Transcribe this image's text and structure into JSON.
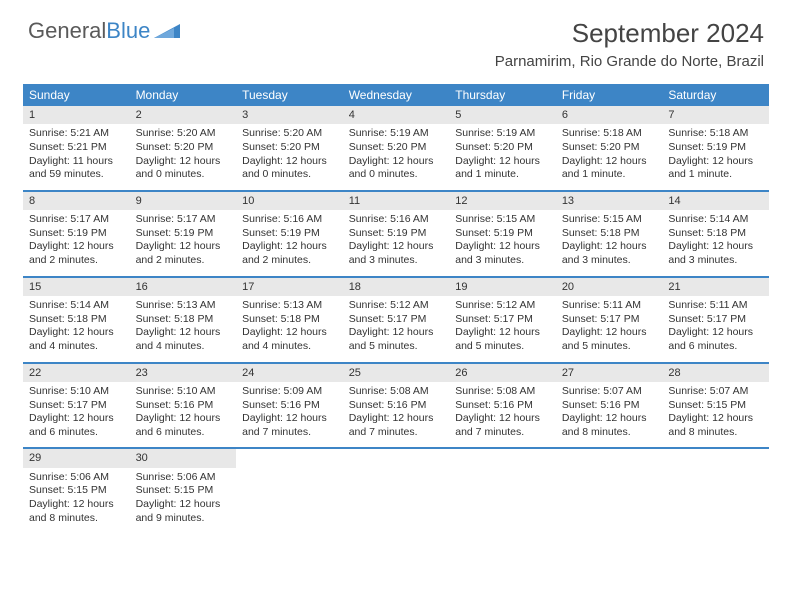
{
  "brand": {
    "part1": "General",
    "part2": "Blue"
  },
  "title": "September 2024",
  "location": "Parnamirim, Rio Grande do Norte, Brazil",
  "colors": {
    "header_bg": "#3d85c6",
    "header_text": "#ffffff",
    "daynum_bg": "#e8e8e8",
    "border": "#3d85c6",
    "page_bg": "#ffffff"
  },
  "typography": {
    "title_fontsize": 26,
    "location_fontsize": 15,
    "dayheader_fontsize": 12,
    "cell_fontsize": 10.5
  },
  "day_headers": [
    "Sunday",
    "Monday",
    "Tuesday",
    "Wednesday",
    "Thursday",
    "Friday",
    "Saturday"
  ],
  "days": [
    {
      "n": "1",
      "sunrise": "Sunrise: 5:21 AM",
      "sunset": "Sunset: 5:21 PM",
      "daylight": "Daylight: 11 hours and 59 minutes."
    },
    {
      "n": "2",
      "sunrise": "Sunrise: 5:20 AM",
      "sunset": "Sunset: 5:20 PM",
      "daylight": "Daylight: 12 hours and 0 minutes."
    },
    {
      "n": "3",
      "sunrise": "Sunrise: 5:20 AM",
      "sunset": "Sunset: 5:20 PM",
      "daylight": "Daylight: 12 hours and 0 minutes."
    },
    {
      "n": "4",
      "sunrise": "Sunrise: 5:19 AM",
      "sunset": "Sunset: 5:20 PM",
      "daylight": "Daylight: 12 hours and 0 minutes."
    },
    {
      "n": "5",
      "sunrise": "Sunrise: 5:19 AM",
      "sunset": "Sunset: 5:20 PM",
      "daylight": "Daylight: 12 hours and 1 minute."
    },
    {
      "n": "6",
      "sunrise": "Sunrise: 5:18 AM",
      "sunset": "Sunset: 5:20 PM",
      "daylight": "Daylight: 12 hours and 1 minute."
    },
    {
      "n": "7",
      "sunrise": "Sunrise: 5:18 AM",
      "sunset": "Sunset: 5:19 PM",
      "daylight": "Daylight: 12 hours and 1 minute."
    },
    {
      "n": "8",
      "sunrise": "Sunrise: 5:17 AM",
      "sunset": "Sunset: 5:19 PM",
      "daylight": "Daylight: 12 hours and 2 minutes."
    },
    {
      "n": "9",
      "sunrise": "Sunrise: 5:17 AM",
      "sunset": "Sunset: 5:19 PM",
      "daylight": "Daylight: 12 hours and 2 minutes."
    },
    {
      "n": "10",
      "sunrise": "Sunrise: 5:16 AM",
      "sunset": "Sunset: 5:19 PM",
      "daylight": "Daylight: 12 hours and 2 minutes."
    },
    {
      "n": "11",
      "sunrise": "Sunrise: 5:16 AM",
      "sunset": "Sunset: 5:19 PM",
      "daylight": "Daylight: 12 hours and 3 minutes."
    },
    {
      "n": "12",
      "sunrise": "Sunrise: 5:15 AM",
      "sunset": "Sunset: 5:19 PM",
      "daylight": "Daylight: 12 hours and 3 minutes."
    },
    {
      "n": "13",
      "sunrise": "Sunrise: 5:15 AM",
      "sunset": "Sunset: 5:18 PM",
      "daylight": "Daylight: 12 hours and 3 minutes."
    },
    {
      "n": "14",
      "sunrise": "Sunrise: 5:14 AM",
      "sunset": "Sunset: 5:18 PM",
      "daylight": "Daylight: 12 hours and 3 minutes."
    },
    {
      "n": "15",
      "sunrise": "Sunrise: 5:14 AM",
      "sunset": "Sunset: 5:18 PM",
      "daylight": "Daylight: 12 hours and 4 minutes."
    },
    {
      "n": "16",
      "sunrise": "Sunrise: 5:13 AM",
      "sunset": "Sunset: 5:18 PM",
      "daylight": "Daylight: 12 hours and 4 minutes."
    },
    {
      "n": "17",
      "sunrise": "Sunrise: 5:13 AM",
      "sunset": "Sunset: 5:18 PM",
      "daylight": "Daylight: 12 hours and 4 minutes."
    },
    {
      "n": "18",
      "sunrise": "Sunrise: 5:12 AM",
      "sunset": "Sunset: 5:17 PM",
      "daylight": "Daylight: 12 hours and 5 minutes."
    },
    {
      "n": "19",
      "sunrise": "Sunrise: 5:12 AM",
      "sunset": "Sunset: 5:17 PM",
      "daylight": "Daylight: 12 hours and 5 minutes."
    },
    {
      "n": "20",
      "sunrise": "Sunrise: 5:11 AM",
      "sunset": "Sunset: 5:17 PM",
      "daylight": "Daylight: 12 hours and 5 minutes."
    },
    {
      "n": "21",
      "sunrise": "Sunrise: 5:11 AM",
      "sunset": "Sunset: 5:17 PM",
      "daylight": "Daylight: 12 hours and 6 minutes."
    },
    {
      "n": "22",
      "sunrise": "Sunrise: 5:10 AM",
      "sunset": "Sunset: 5:17 PM",
      "daylight": "Daylight: 12 hours and 6 minutes."
    },
    {
      "n": "23",
      "sunrise": "Sunrise: 5:10 AM",
      "sunset": "Sunset: 5:16 PM",
      "daylight": "Daylight: 12 hours and 6 minutes."
    },
    {
      "n": "24",
      "sunrise": "Sunrise: 5:09 AM",
      "sunset": "Sunset: 5:16 PM",
      "daylight": "Daylight: 12 hours and 7 minutes."
    },
    {
      "n": "25",
      "sunrise": "Sunrise: 5:08 AM",
      "sunset": "Sunset: 5:16 PM",
      "daylight": "Daylight: 12 hours and 7 minutes."
    },
    {
      "n": "26",
      "sunrise": "Sunrise: 5:08 AM",
      "sunset": "Sunset: 5:16 PM",
      "daylight": "Daylight: 12 hours and 7 minutes."
    },
    {
      "n": "27",
      "sunrise": "Sunrise: 5:07 AM",
      "sunset": "Sunset: 5:16 PM",
      "daylight": "Daylight: 12 hours and 8 minutes."
    },
    {
      "n": "28",
      "sunrise": "Sunrise: 5:07 AM",
      "sunset": "Sunset: 5:15 PM",
      "daylight": "Daylight: 12 hours and 8 minutes."
    },
    {
      "n": "29",
      "sunrise": "Sunrise: 5:06 AM",
      "sunset": "Sunset: 5:15 PM",
      "daylight": "Daylight: 12 hours and 8 minutes."
    },
    {
      "n": "30",
      "sunrise": "Sunrise: 5:06 AM",
      "sunset": "Sunset: 5:15 PM",
      "daylight": "Daylight: 12 hours and 9 minutes."
    }
  ]
}
